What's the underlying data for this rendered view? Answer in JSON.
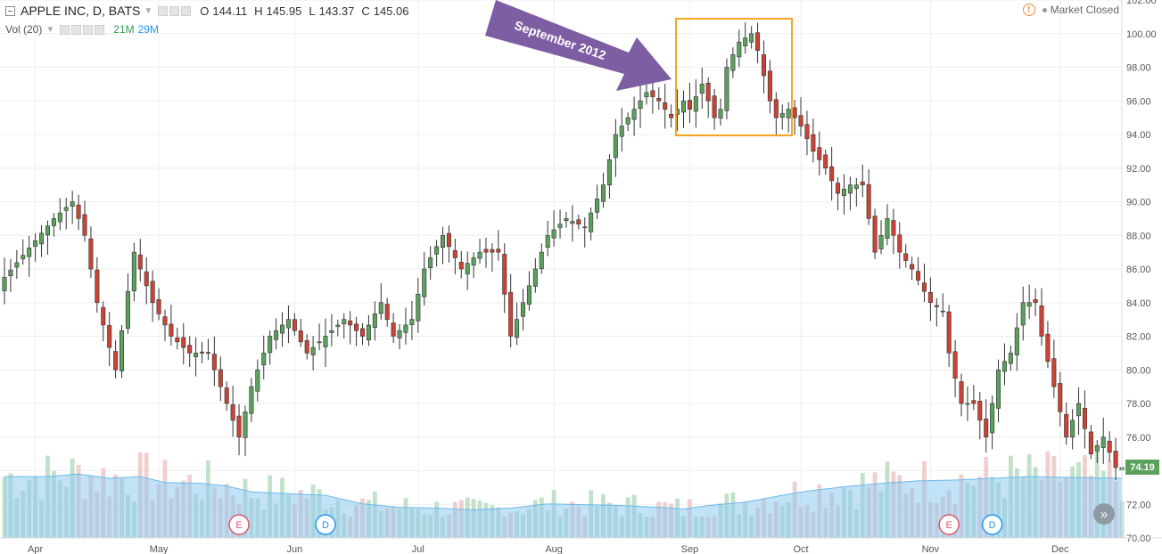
{
  "legend": {
    "symbol": "APPLE INC, D, BATS",
    "open_label": "O",
    "open": "144.11",
    "high_label": "H",
    "high": "145.95",
    "low_label": "L",
    "low": "143.37",
    "close_label": "C",
    "close": "145.06"
  },
  "volume_legend": {
    "label": "Vol (20)",
    "value_a": "21M",
    "value_b": "29M"
  },
  "status": {
    "warning_symbol": "!",
    "text": "Market Closed"
  },
  "last_price": "74.19",
  "annotation": {
    "text": "September 2012"
  },
  "markers": [
    {
      "label": "E",
      "color": "#e0556b",
      "x": 38
    },
    {
      "label": "D",
      "color": "#2196f3",
      "x": 52
    },
    {
      "label": "E",
      "color": "#e0556b",
      "x": 153
    },
    {
      "label": "D",
      "color": "#2196f3",
      "x": 160
    }
  ],
  "scroll_button_symbol": "»",
  "colors": {
    "up": "#5ba05d",
    "down": "#cc4235",
    "vol_up": "#b9dcc0",
    "vol_down": "#ecc7c7",
    "vol_ma": "#8fcaf0",
    "grid": "#eeeeee",
    "annotation_arrow": "#7e5ea3",
    "annotation_box": "#f5a623"
  },
  "chart_data": {
    "type": "candlestick",
    "title": "APPLE INC, D, BATS",
    "x_axis": {
      "type": "category",
      "tick_labels": [
        {
          "label": "Apr",
          "x": 5
        },
        {
          "label": "May",
          "x": 25
        },
        {
          "label": "Jun",
          "x": 47
        },
        {
          "label": "Jul",
          "x": 67
        },
        {
          "label": "Aug",
          "x": 89
        },
        {
          "label": "Sep",
          "x": 111
        },
        {
          "label": "Oct",
          "x": 129
        },
        {
          "label": "Nov",
          "x": 150
        },
        {
          "label": "Dec",
          "x": 171
        }
      ]
    },
    "y_axis": {
      "range": [
        70,
        102
      ],
      "ticks": [
        "70.00",
        "72.00",
        "74.00",
        "76.00",
        "78.00",
        "80.00",
        "82.00",
        "84.00",
        "86.00",
        "88.00",
        "90.00",
        "92.00",
        "94.00",
        "96.00",
        "98.00",
        "100.00",
        "102.00"
      ]
    },
    "x_range": [
      0,
      181
    ],
    "volume_scale_max": 140,
    "candle_anchors": [
      [
        0,
        85.5
      ],
      [
        8,
        89
      ],
      [
        11,
        90
      ],
      [
        13,
        88
      ],
      [
        15,
        84
      ],
      [
        18,
        80
      ],
      [
        21,
        87
      ],
      [
        24,
        84
      ],
      [
        27,
        82
      ],
      [
        30,
        81
      ],
      [
        33,
        81
      ],
      [
        36,
        78
      ],
      [
        38,
        76
      ],
      [
        40,
        79
      ],
      [
        43,
        82
      ],
      [
        46,
        83
      ],
      [
        49,
        81
      ],
      [
        52,
        82
      ],
      [
        55,
        83
      ],
      [
        58,
        82
      ],
      [
        61,
        84
      ],
      [
        63,
        82
      ],
      [
        66,
        83
      ],
      [
        68,
        86
      ],
      [
        71,
        88
      ],
      [
        74,
        86
      ],
      [
        77,
        87
      ],
      [
        80,
        87
      ],
      [
        82,
        82
      ],
      [
        84,
        84
      ],
      [
        86,
        86
      ],
      [
        88,
        88
      ],
      [
        91,
        89
      ],
      [
        94,
        88.5
      ],
      [
        97,
        91
      ],
      [
        99,
        94
      ],
      [
        101,
        95
      ],
      [
        104,
        96.5
      ],
      [
        106,
        96
      ],
      [
        108,
        95
      ],
      [
        110,
        96
      ],
      [
        111,
        95.5
      ],
      [
        113,
        97
      ],
      [
        115,
        95
      ],
      [
        116,
        95.5
      ],
      [
        117,
        98
      ],
      [
        119,
        99.5
      ],
      [
        121,
        100
      ],
      [
        122,
        99
      ],
      [
        124,
        96
      ],
      [
        125,
        95
      ],
      [
        127,
        95.5
      ],
      [
        129,
        94.5
      ],
      [
        131,
        93
      ],
      [
        133,
        92
      ],
      [
        135,
        90.5
      ],
      [
        137,
        91
      ],
      [
        139,
        91
      ],
      [
        141,
        87
      ],
      [
        143,
        89
      ],
      [
        145,
        87
      ],
      [
        147,
        86
      ],
      [
        150,
        84
      ],
      [
        152,
        83.5
      ],
      [
        153,
        81
      ],
      [
        155,
        78
      ],
      [
        157,
        78
      ],
      [
        159,
        76
      ],
      [
        161,
        80
      ],
      [
        163,
        81
      ],
      [
        165,
        84
      ],
      [
        167,
        84
      ],
      [
        168,
        82
      ],
      [
        170,
        79
      ],
      [
        172,
        76
      ],
      [
        174,
        78
      ],
      [
        176,
        75
      ],
      [
        178,
        76
      ],
      [
        180,
        74.19
      ]
    ],
    "volume_ma_anchors": [
      [
        0,
        72
      ],
      [
        7,
        72
      ],
      [
        12,
        75
      ],
      [
        17,
        70
      ],
      [
        22,
        72
      ],
      [
        26,
        65
      ],
      [
        32,
        64
      ],
      [
        36,
        61
      ],
      [
        40,
        54
      ],
      [
        46,
        52
      ],
      [
        52,
        50
      ],
      [
        58,
        40
      ],
      [
        64,
        36
      ],
      [
        70,
        35
      ],
      [
        76,
        33
      ],
      [
        82,
        35
      ],
      [
        88,
        40
      ],
      [
        94,
        39
      ],
      [
        100,
        38
      ],
      [
        106,
        36
      ],
      [
        110,
        34
      ],
      [
        114,
        38
      ],
      [
        120,
        42
      ],
      [
        126,
        50
      ],
      [
        130,
        55
      ],
      [
        136,
        60
      ],
      [
        142,
        64
      ],
      [
        148,
        67
      ],
      [
        154,
        68
      ],
      [
        160,
        70
      ],
      [
        166,
        72
      ],
      [
        172,
        71
      ],
      [
        181,
        70
      ]
    ]
  }
}
